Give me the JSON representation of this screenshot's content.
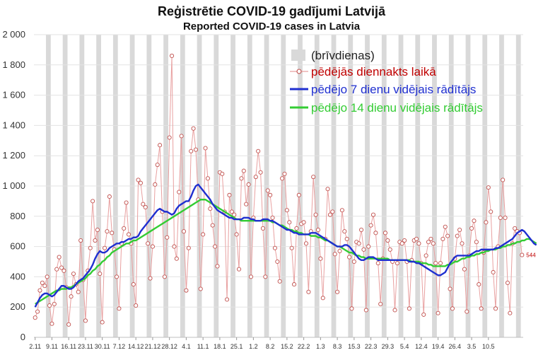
{
  "chart_data": {
    "type": "line",
    "title": "Reģistrētie COVID-19 gadījumi Latvijā",
    "subtitle": "Reported COVID-19 cases in Latvia",
    "xlabel": "",
    "ylabel": "",
    "ylim": [
      0,
      2000
    ],
    "y_ticks": [
      "0",
      "200",
      "400",
      "600",
      "800",
      "1 000",
      "1 200",
      "1 400",
      "1 600",
      "1 800",
      "2 000"
    ],
    "x_ticks": [
      "2.11",
      "9.11",
      "16.11",
      "23.11",
      "30.11",
      "7.12",
      "14.12",
      "21.12",
      "28.12",
      "4.1",
      "11.1",
      "18.1",
      "25.1",
      "1.2",
      "8.2",
      "15.2",
      "22.2",
      "1.3",
      "8.3",
      "15.3",
      "22.3",
      "29.3",
      "5.4",
      "12.4",
      "19.4",
      "26.4",
      "3.5",
      "10.5"
    ],
    "grid": true,
    "legend_position": "top-right",
    "legend": {
      "holidays": "(brīvdienas)",
      "daily": "pēdējās diennakts laikā",
      "avg7": "pēdējo 7 dienu vidējais rādītājs",
      "avg14": "pēdējo 14 dienu vidējais rādītājs"
    },
    "colors": {
      "daily": "#e8a0a0",
      "daily_marker": "#c0504d",
      "avg7": "#1f2fd0",
      "avg14": "#33cc33",
      "holiday": "#d9d9d9"
    },
    "last_value_label": "544",
    "series": [
      {
        "name": "pēdējās diennakts laikā",
        "values": [
          130,
          170,
          310,
          360,
          340,
          400,
          210,
          90,
          220,
          450,
          530,
          460,
          440,
          330,
          85,
          270,
          420,
          350,
          300,
          640,
          380,
          110,
          440,
          590,
          900,
          640,
          710,
          420,
          100,
          590,
          700,
          930,
          690,
          580,
          400,
          190,
          620,
          720,
          890,
          680,
          620,
          350,
          210,
          1040,
          1020,
          880,
          860,
          620,
          390,
          600,
          1010,
          1140,
          1270,
          830,
          400,
          660,
          1320,
          1860,
          600,
          520,
          960,
          1330,
          700,
          310,
          590,
          1230,
          1380,
          1240,
          910,
          320,
          680,
          1250,
          1050,
          850,
          740,
          600,
          470,
          1090,
          1080,
          830,
          250,
          940,
          830,
          810,
          680,
          450,
          1050,
          1100,
          880,
          1010,
          400,
          790,
          1060,
          1230,
          1090,
          720,
          400,
          970,
          940,
          790,
          590,
          500,
          370,
          1050,
          1080,
          840,
          760,
          590,
          350,
          720,
          940,
          750,
          760,
          620,
          300,
          700,
          1060,
          810,
          710,
          520,
          260,
          650,
          980,
          810,
          830,
          550,
          300,
          570,
          840,
          700,
          650,
          530,
          190,
          500,
          630,
          620,
          710,
          580,
          180,
          600,
          740,
          810,
          690,
          490,
          220,
          520,
          690,
          640,
          580,
          500,
          180,
          490,
          630,
          620,
          640,
          500,
          190,
          510,
          640,
          650,
          620,
          490,
          150,
          540,
          630,
          650,
          620,
          490,
          160,
          490,
          650,
          730,
          670,
          320,
          190,
          520,
          670,
          710,
          620,
          450,
          170,
          540,
          720,
          770,
          630,
          350,
          190,
          560,
          760,
          990,
          830,
          430,
          190,
          600,
          790,
          1040,
          790,
          360,
          160,
          620,
          720,
          700,
          690,
          544
        ]
      },
      {
        "name": "pēdējo 7 dienu vidējais rādītājs",
        "values": [
          200,
          230,
          260,
          280,
          290,
          290,
          280,
          270,
          280,
          300,
          320,
          340,
          340,
          330,
          320,
          320,
          330,
          350,
          370,
          380,
          390,
          410,
          430,
          450,
          480,
          520,
          550,
          570,
          560,
          560,
          570,
          590,
          600,
          610,
          620,
          620,
          630,
          630,
          640,
          650,
          650,
          660,
          660,
          670,
          700,
          720,
          740,
          760,
          780,
          800,
          820,
          840,
          850,
          840,
          830,
          830,
          820,
          810,
          820,
          850,
          870,
          880,
          890,
          900,
          900,
          930,
          970,
          1000,
          1010,
          990,
          970,
          950,
          930,
          910,
          880,
          860,
          840,
          830,
          820,
          810,
          800,
          790,
          790,
          780,
          780,
          780,
          780,
          790,
          790,
          790,
          780,
          780,
          770,
          770,
          770,
          780,
          780,
          780,
          770,
          770,
          760,
          750,
          740,
          730,
          720,
          710,
          710,
          700,
          690,
          690,
          680,
          680,
          680,
          680,
          680,
          690,
          690,
          690,
          680,
          670,
          660,
          650,
          640,
          630,
          620,
          610,
          600,
          600,
          600,
          610,
          610,
          600,
          580,
          560,
          540,
          520,
          510,
          510,
          520,
          530,
          530,
          530,
          520,
          510,
          510,
          510,
          510,
          510,
          510,
          510,
          510,
          510,
          510,
          510,
          510,
          510,
          500,
          500,
          500,
          490,
          490,
          480,
          470,
          460,
          450,
          440,
          430,
          420,
          410,
          410,
          420,
          430,
          460,
          490,
          510,
          530,
          540,
          540,
          540,
          540,
          540,
          540,
          550,
          560,
          570,
          570,
          580,
          580,
          580,
          580,
          580,
          580,
          590,
          590,
          600,
          610,
          620,
          630,
          640,
          650,
          670,
          690,
          700,
          710,
          700,
          680,
          660,
          640,
          620,
          610
        ]
      },
      {
        "name": "pēdējo 14 dienu vidējais rādītājs",
        "values": [
          220,
          230,
          240,
          250,
          260,
          270,
          280,
          290,
          300,
          310,
          310,
          320,
          320,
          320,
          330,
          330,
          340,
          350,
          360,
          370,
          380,
          390,
          410,
          420,
          440,
          450,
          470,
          480,
          500,
          510,
          530,
          540,
          560,
          570,
          580,
          590,
          600,
          610,
          620,
          620,
          630,
          640,
          640,
          650,
          660,
          670,
          680,
          690,
          700,
          710,
          720,
          730,
          740,
          750,
          760,
          770,
          780,
          790,
          800,
          810,
          820,
          830,
          840,
          850,
          860,
          870,
          880,
          890,
          900,
          910,
          910,
          910,
          900,
          890,
          880,
          870,
          860,
          850,
          840,
          830,
          820,
          810,
          800,
          790,
          780,
          780,
          770,
          770,
          770,
          770,
          770,
          770,
          770,
          770,
          770,
          770,
          770,
          770,
          770,
          760,
          760,
          750,
          740,
          740,
          730,
          720,
          710,
          710,
          700,
          700,
          690,
          690,
          680,
          680,
          680,
          670,
          670,
          670,
          660,
          660,
          650,
          640,
          640,
          630,
          620,
          610,
          600,
          600,
          590,
          580,
          570,
          560,
          560,
          550,
          540,
          540,
          530,
          530,
          520,
          520,
          520,
          520,
          520,
          520,
          520,
          520,
          520,
          520,
          510,
          510,
          510,
          510,
          510,
          510,
          510,
          510,
          510,
          500,
          500,
          500,
          500,
          490,
          490,
          490,
          480,
          480,
          470,
          470,
          470,
          470,
          470,
          470,
          480,
          480,
          490,
          500,
          500,
          510,
          520,
          520,
          530,
          530,
          540,
          540,
          550,
          550,
          560,
          560,
          570,
          570,
          580,
          580,
          580,
          590,
          590,
          600,
          600,
          610,
          610,
          620,
          620,
          630,
          630,
          640,
          640,
          650,
          650,
          640,
          630,
          620
        ]
      }
    ]
  }
}
